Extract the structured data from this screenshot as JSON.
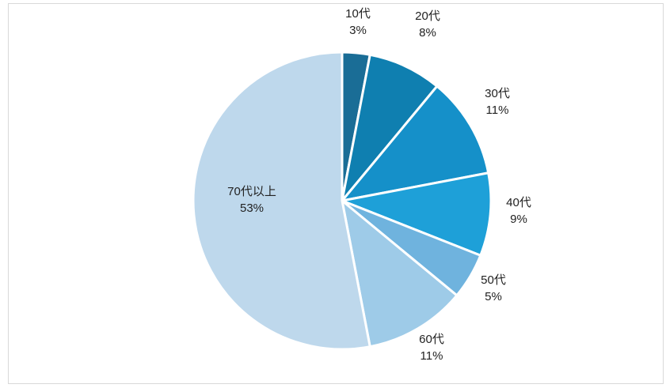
{
  "chart_data": {
    "type": "pie",
    "title": "",
    "start_angle_deg": 0,
    "direction": "clockwise",
    "slices": [
      {
        "label": "10代",
        "value": 3,
        "value_text": "3%",
        "color": "#1a6d96"
      },
      {
        "label": "20代",
        "value": 8,
        "value_text": "8%",
        "color": "#0f7fb0"
      },
      {
        "label": "30代",
        "value": 11,
        "value_text": "11%",
        "color": "#1590c9"
      },
      {
        "label": "40代",
        "value": 9,
        "value_text": "9%",
        "color": "#1ea0d8"
      },
      {
        "label": "50代",
        "value": 5,
        "value_text": "5%",
        "color": "#6fb3de"
      },
      {
        "label": "60代",
        "value": 11,
        "value_text": "11%",
        "color": "#9ecbe8"
      },
      {
        "label": "70代以上",
        "value": 53,
        "value_text": "53%",
        "color": "#bed8ec"
      }
    ],
    "slice_border_color": "#ffffff",
    "legend": "none"
  }
}
